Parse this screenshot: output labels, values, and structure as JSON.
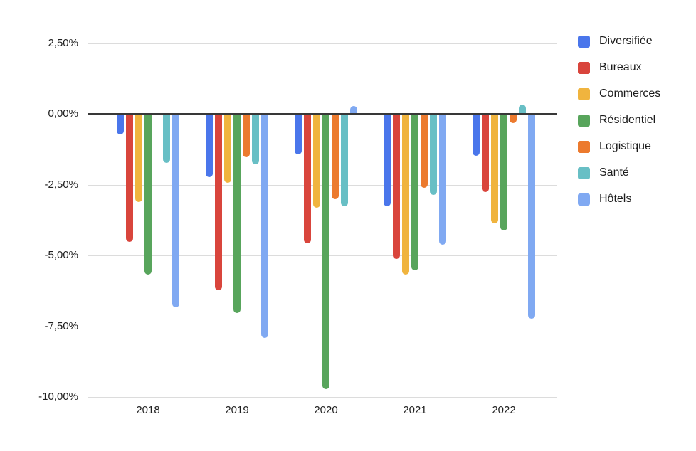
{
  "chart_data": {
    "type": "bar",
    "title": "",
    "xlabel": "",
    "ylabel": "",
    "categories": [
      "2018",
      "2019",
      "2020",
      "2021",
      "2022"
    ],
    "series": [
      {
        "name": "Diversifiée",
        "color": "#4a76eb",
        "values": [
          -0.7,
          -2.2,
          -1.4,
          -3.25,
          -1.45
        ]
      },
      {
        "name": "Bureaux",
        "color": "#d9453c",
        "values": [
          -4.5,
          -6.2,
          -4.55,
          -5.1,
          -2.75
        ]
      },
      {
        "name": "Commerces",
        "color": "#f0b43e",
        "values": [
          -3.1,
          -2.4,
          -3.3,
          -5.65,
          -3.85
        ]
      },
      {
        "name": "Résidentiel",
        "color": "#58a55c",
        "values": [
          -5.65,
          -7.0,
          -9.7,
          -5.5,
          -4.1
        ]
      },
      {
        "name": "Logistique",
        "color": "#ec7a2e",
        "values": [
          0,
          -1.5,
          -3.0,
          -2.6,
          -0.3
        ]
      },
      {
        "name": "Santé",
        "color": "#68bfc5",
        "values": [
          -1.7,
          -1.75,
          -3.25,
          -2.85,
          0.3
        ]
      },
      {
        "name": "Hôtels",
        "color": "#80a9f2",
        "values": [
          -6.8,
          -7.9,
          0.25,
          -4.6,
          -7.2
        ]
      }
    ],
    "y_ticks": [
      "2,50%",
      "0,00%",
      "-2,50%",
      "-5,00%",
      "-7,50%",
      "-10,00%"
    ],
    "y_tick_values": [
      2.5,
      0,
      -2.5,
      -5,
      -7.5,
      -10
    ],
    "ylim": [
      -10,
      2.5
    ],
    "grid": true,
    "legend_position": "right",
    "value_format": "percent-fr"
  },
  "colors": {
    "background": "#ffffff",
    "gridline": "#dcdcdc",
    "zero_axis": "#383838",
    "text": "#1f1f1f"
  }
}
